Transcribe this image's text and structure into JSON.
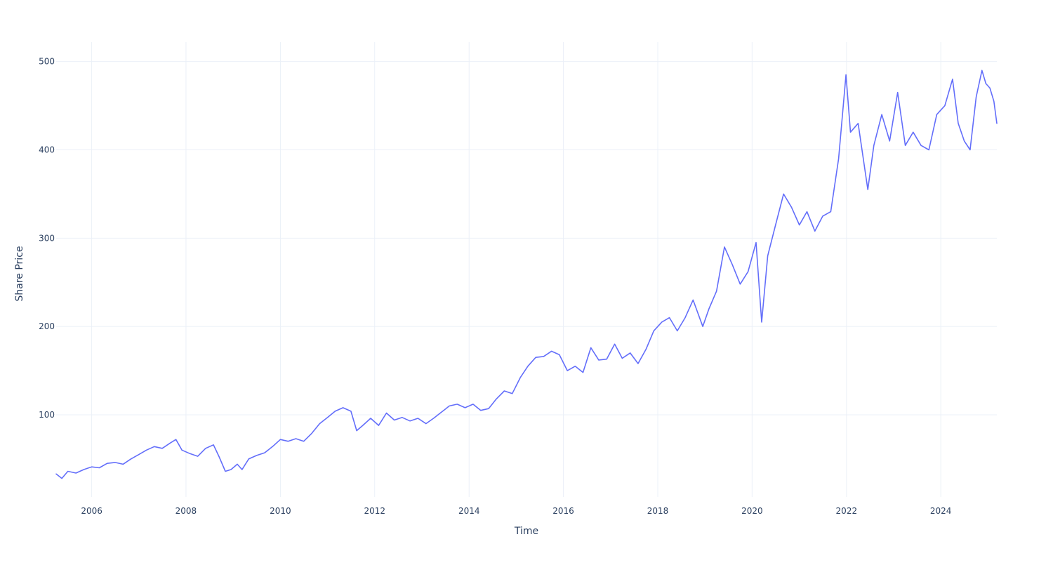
{
  "chart_data": {
    "type": "line",
    "title": "",
    "xlabel": "Time",
    "ylabel": "Share Price",
    "xlim": [
      "2005-04-01",
      "2025-03-10"
    ],
    "ylim": [
      7,
      522
    ],
    "x_ticks": [
      "2006",
      "2008",
      "2010",
      "2012",
      "2014",
      "2016",
      "2018",
      "2020",
      "2022",
      "2024"
    ],
    "y_ticks": [
      100,
      200,
      300,
      400,
      500
    ],
    "grid": true,
    "legend": "none",
    "line_color": "#636efa",
    "series": [
      {
        "x": [
          "2005-04-01",
          "2005-05-15",
          "2005-07-01",
          "2005-09-01",
          "2005-11-01",
          "2006-01-01",
          "2006-03-01",
          "2006-05-01",
          "2006-07-01",
          "2006-09-01",
          "2006-11-01",
          "2007-01-01",
          "2007-03-01",
          "2007-05-01",
          "2007-07-01",
          "2007-09-01",
          "2007-10-15",
          "2007-12-01",
          "2008-02-01",
          "2008-04-01",
          "2008-06-01",
          "2008-08-01",
          "2008-09-15",
          "2008-11-01",
          "2008-12-15",
          "2009-02-01",
          "2009-03-10",
          "2009-05-01",
          "2009-07-01",
          "2009-09-01",
          "2009-11-01",
          "2010-01-01",
          "2010-03-01",
          "2010-05-01",
          "2010-07-01",
          "2010-09-01",
          "2010-11-01",
          "2011-01-01",
          "2011-03-01",
          "2011-05-01",
          "2011-07-01",
          "2011-08-15",
          "2011-10-01",
          "2011-12-01",
          "2012-02-01",
          "2012-04-01",
          "2012-06-01",
          "2012-08-01",
          "2012-10-01",
          "2012-12-01",
          "2013-02-01",
          "2013-04-01",
          "2013-06-01",
          "2013-08-01",
          "2013-10-01",
          "2013-12-01",
          "2014-02-01",
          "2014-04-01",
          "2014-06-01",
          "2014-08-01",
          "2014-10-01",
          "2014-12-01",
          "2015-02-01",
          "2015-04-01",
          "2015-06-01",
          "2015-08-01",
          "2015-10-01",
          "2015-12-01",
          "2016-02-01",
          "2016-04-01",
          "2016-06-01",
          "2016-08-01",
          "2016-10-01",
          "2016-12-01",
          "2017-02-01",
          "2017-04-01",
          "2017-06-01",
          "2017-08-01",
          "2017-10-01",
          "2017-12-01",
          "2018-02-01",
          "2018-04-01",
          "2018-06-01",
          "2018-08-01",
          "2018-10-01",
          "2018-12-15",
          "2019-02-01",
          "2019-04-01",
          "2019-06-01",
          "2019-08-01",
          "2019-10-01",
          "2019-12-01",
          "2020-02-01",
          "2020-03-15",
          "2020-05-01",
          "2020-07-01",
          "2020-09-01",
          "2020-11-01",
          "2021-01-01",
          "2021-03-01",
          "2021-05-01",
          "2021-07-01",
          "2021-09-01",
          "2021-11-01",
          "2021-12-28",
          "2022-02-01",
          "2022-04-01",
          "2022-06-15",
          "2022-08-01",
          "2022-10-01",
          "2022-12-01",
          "2023-02-01",
          "2023-04-01",
          "2023-06-01",
          "2023-08-01",
          "2023-10-01",
          "2023-12-01",
          "2024-02-01",
          "2024-04-01",
          "2024-05-15",
          "2024-07-01",
          "2024-08-15",
          "2024-10-01",
          "2024-11-15",
          "2024-12-15",
          "2025-01-15",
          "2025-02-15",
          "2025-03-10"
        ],
        "values": [
          33,
          28,
          36,
          34,
          38,
          41,
          40,
          45,
          46,
          44,
          50,
          55,
          60,
          64,
          62,
          68,
          72,
          60,
          56,
          53,
          62,
          66,
          52,
          36,
          38,
          44,
          38,
          50,
          54,
          57,
          64,
          72,
          70,
          73,
          70,
          79,
          90,
          97,
          104,
          108,
          104,
          82,
          88,
          96,
          88,
          102,
          94,
          97,
          93,
          96,
          90,
          96,
          103,
          110,
          112,
          108,
          112,
          105,
          107,
          118,
          127,
          124,
          142,
          155,
          165,
          166,
          172,
          168,
          150,
          155,
          148,
          176,
          162,
          163,
          180,
          164,
          170,
          158,
          174,
          195,
          205,
          210,
          195,
          210,
          230,
          200,
          220,
          240,
          290,
          270,
          248,
          262,
          295,
          205,
          280,
          315,
          350,
          335,
          315,
          330,
          308,
          325,
          330,
          390,
          485,
          420,
          430,
          355,
          405,
          440,
          410,
          465,
          405,
          420,
          405,
          400,
          440,
          450,
          480,
          430,
          410,
          400,
          460,
          490,
          475,
          470,
          455,
          430
        ]
      }
    ]
  }
}
